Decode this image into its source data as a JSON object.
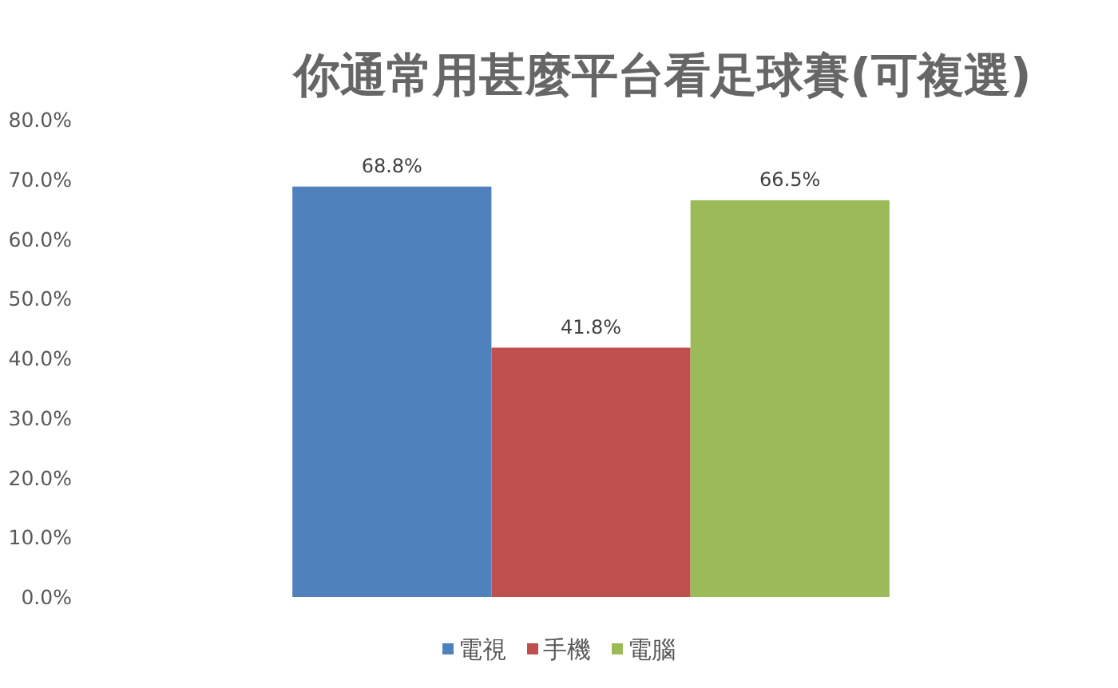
{
  "chart_data": {
    "type": "bar",
    "title": "你通常用甚麼平台看足球賽(可複選)",
    "categories": [
      null
    ],
    "series": [
      {
        "name": "電視",
        "color": "#4f81bd",
        "values": [
          68.8
        ],
        "value_labels": [
          "68.8%"
        ]
      },
      {
        "name": "手機",
        "color": "#c0504d",
        "values": [
          41.8
        ],
        "value_labels": [
          "41.8%"
        ]
      },
      {
        "name": "電腦",
        "color": "#9bbb59",
        "values": [
          66.5
        ],
        "value_labels": [
          "66.5%"
        ]
      }
    ],
    "ylim": [
      0,
      80
    ],
    "yticks": [
      {
        "value": 0,
        "label": "0.0%"
      },
      {
        "value": 10,
        "label": "10.0%"
      },
      {
        "value": 20,
        "label": "20.0%"
      },
      {
        "value": 30,
        "label": "30.0%"
      },
      {
        "value": 40,
        "label": "40.0%"
      },
      {
        "value": 50,
        "label": "50.0%"
      },
      {
        "value": 60,
        "label": "60.0%"
      },
      {
        "value": 70,
        "label": "70.0%"
      },
      {
        "value": 80,
        "label": "80.0%"
      }
    ],
    "legend": "bottom",
    "grid": false
  }
}
